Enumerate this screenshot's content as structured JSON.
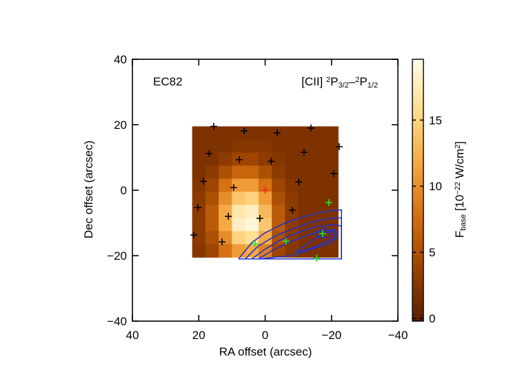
{
  "chart_data": {
    "type": "image",
    "xlabel": "RA offset (arcsec)",
    "ylabel": "Dec offset (arcsec)",
    "xlim": [
      40,
      -40
    ],
    "ylim": [
      -40,
      40
    ],
    "xticks": [
      40,
      20,
      0,
      {
        "value": -20,
        "label": "−20"
      },
      {
        "value": -40,
        "label": "−40"
      }
    ],
    "yticks": [
      {
        "value": -40,
        "label": "−40"
      },
      {
        "value": -20,
        "label": "−20"
      },
      0,
      20,
      40
    ],
    "annotations": [
      {
        "parts": [
          {
            "text": "EC82"
          }
        ]
      },
      {
        "parts": [
          {
            "text": "[CII] "
          },
          {
            "text": "2",
            "sup": true
          },
          {
            "text": "P"
          },
          {
            "text": "3/2",
            "sub": true
          },
          {
            "text": "–"
          },
          {
            "text": "2",
            "sup": true
          },
          {
            "text": "P"
          },
          {
            "text": "1/2",
            "sub": true
          }
        ]
      }
    ],
    "image": {
      "ra_edges": [
        22,
        -22
      ],
      "dec_edges": [
        19.5,
        -20.5
      ],
      "values": [
        [
          2,
          2,
          2,
          2,
          2,
          2,
          2,
          2,
          2,
          2,
          2
        ],
        [
          2,
          2,
          2,
          2.5,
          2.5,
          2.5,
          2,
          2,
          2,
          2,
          2
        ],
        [
          2,
          2,
          3,
          4,
          4,
          3,
          2.5,
          2,
          2,
          2,
          2
        ],
        [
          2,
          3,
          5,
          7,
          7,
          5,
          3,
          2,
          2,
          2,
          2
        ],
        [
          2.5,
          4,
          8,
          11,
          11,
          8,
          4,
          2.5,
          2,
          2,
          2
        ],
        [
          3,
          5,
          10,
          14,
          15,
          11,
          5,
          3,
          2,
          2,
          2
        ],
        [
          3,
          6,
          12,
          17,
          18,
          13,
          6,
          3,
          2,
          2,
          2
        ],
        [
          3,
          6,
          12,
          18,
          19,
          14,
          6,
          3,
          2,
          2,
          2
        ],
        [
          3,
          5,
          10,
          15,
          16,
          12,
          5,
          3,
          2,
          2,
          2
        ],
        [
          2.5,
          4,
          8,
          11,
          12,
          9,
          4,
          2.5,
          2,
          2,
          2
        ]
      ]
    },
    "colormap": [
      "#5a1e00",
      "#9a4200",
      "#d46e10",
      "#f5a640",
      "#ffdc8c",
      "#fffbe8"
    ],
    "colorbar": {
      "clim": [
        -0.2,
        19.6
      ],
      "ticks": [
        0,
        5,
        10,
        15
      ],
      "label_parts": [
        {
          "text": "F"
        },
        {
          "text": "base",
          "sub": true
        },
        {
          "text": " [10"
        },
        {
          "text": "−22",
          "sup": true
        },
        {
          "text": " W/cm"
        },
        {
          "text": "2",
          "sup": true
        },
        {
          "text": "]"
        }
      ]
    },
    "contour_color": "#2233cc",
    "contours": [
      {
        "ra": [
          8,
          4,
          0,
          -6,
          -12,
          -18,
          -23,
          -23,
          8
        ],
        "dec": [
          -21,
          -16,
          -13,
          -10,
          -8,
          -6.5,
          -6,
          -21,
          -21
        ]
      },
      {
        "ra": [
          6,
          2,
          -3,
          -9,
          -15,
          -20,
          -23,
          -23,
          6
        ],
        "dec": [
          -21,
          -17,
          -14,
          -11.5,
          -9.5,
          -8.5,
          -8.5,
          -21,
          -21
        ]
      },
      {
        "ra": [
          4,
          0,
          -5,
          -11,
          -16,
          -21,
          -23,
          -23,
          4
        ],
        "dec": [
          -21,
          -18,
          -15,
          -12.5,
          -11,
          -10.5,
          -11,
          -21,
          -21
        ]
      },
      {
        "ra": [
          2,
          -2,
          -7,
          -12,
          -17,
          -21,
          -22,
          -20,
          -14,
          -8,
          2
        ],
        "dec": [
          -21,
          -18.5,
          -16,
          -14,
          -12.5,
          -12,
          -14,
          -16,
          -18,
          -20,
          -21
        ]
      },
      {
        "ra": [
          -9,
          -14,
          -18,
          -21,
          -21,
          -18,
          -13,
          -9
        ],
        "dec": [
          -19,
          -15.5,
          -13,
          -12.5,
          -14.5,
          -16,
          -18,
          -19
        ]
      },
      {
        "ra": [
          -15,
          -18,
          -20,
          -19,
          -16,
          -15
        ],
        "dec": [
          -13,
          -11.5,
          -13,
          -14.5,
          -14.5,
          -13
        ]
      }
    ],
    "markers": [
      {
        "color": "#000000",
        "ra": [
          15.5,
          6.3,
          -3.6,
          -13.8,
          16.9,
          -11.7,
          -22.3,
          7.8,
          -1.8,
          -20.7,
          18.6,
          9.5,
          -10.1,
          20.3,
          -8.2,
          11.1,
          1.6,
          21.5,
          13.0
        ],
        "dec": [
          19.5,
          18.1,
          17.5,
          19.0,
          11.2,
          11.6,
          13.3,
          9.3,
          8.8,
          5.1,
          2.7,
          0.8,
          2.5,
          -5.3,
          -6.1,
          -8.0,
          -8.6,
          -13.7,
          -15.8
        ]
      },
      {
        "color": "#ff2020",
        "ra": [
          0
        ],
        "dec": [
          0
        ]
      },
      {
        "color": "#22ee22",
        "ra": [
          -19.2,
          -17.3,
          -6.3,
          3.0,
          -15.5
        ],
        "dec": [
          -3.8,
          -13.3,
          -15.6,
          -16.4,
          -20.8
        ]
      }
    ]
  }
}
